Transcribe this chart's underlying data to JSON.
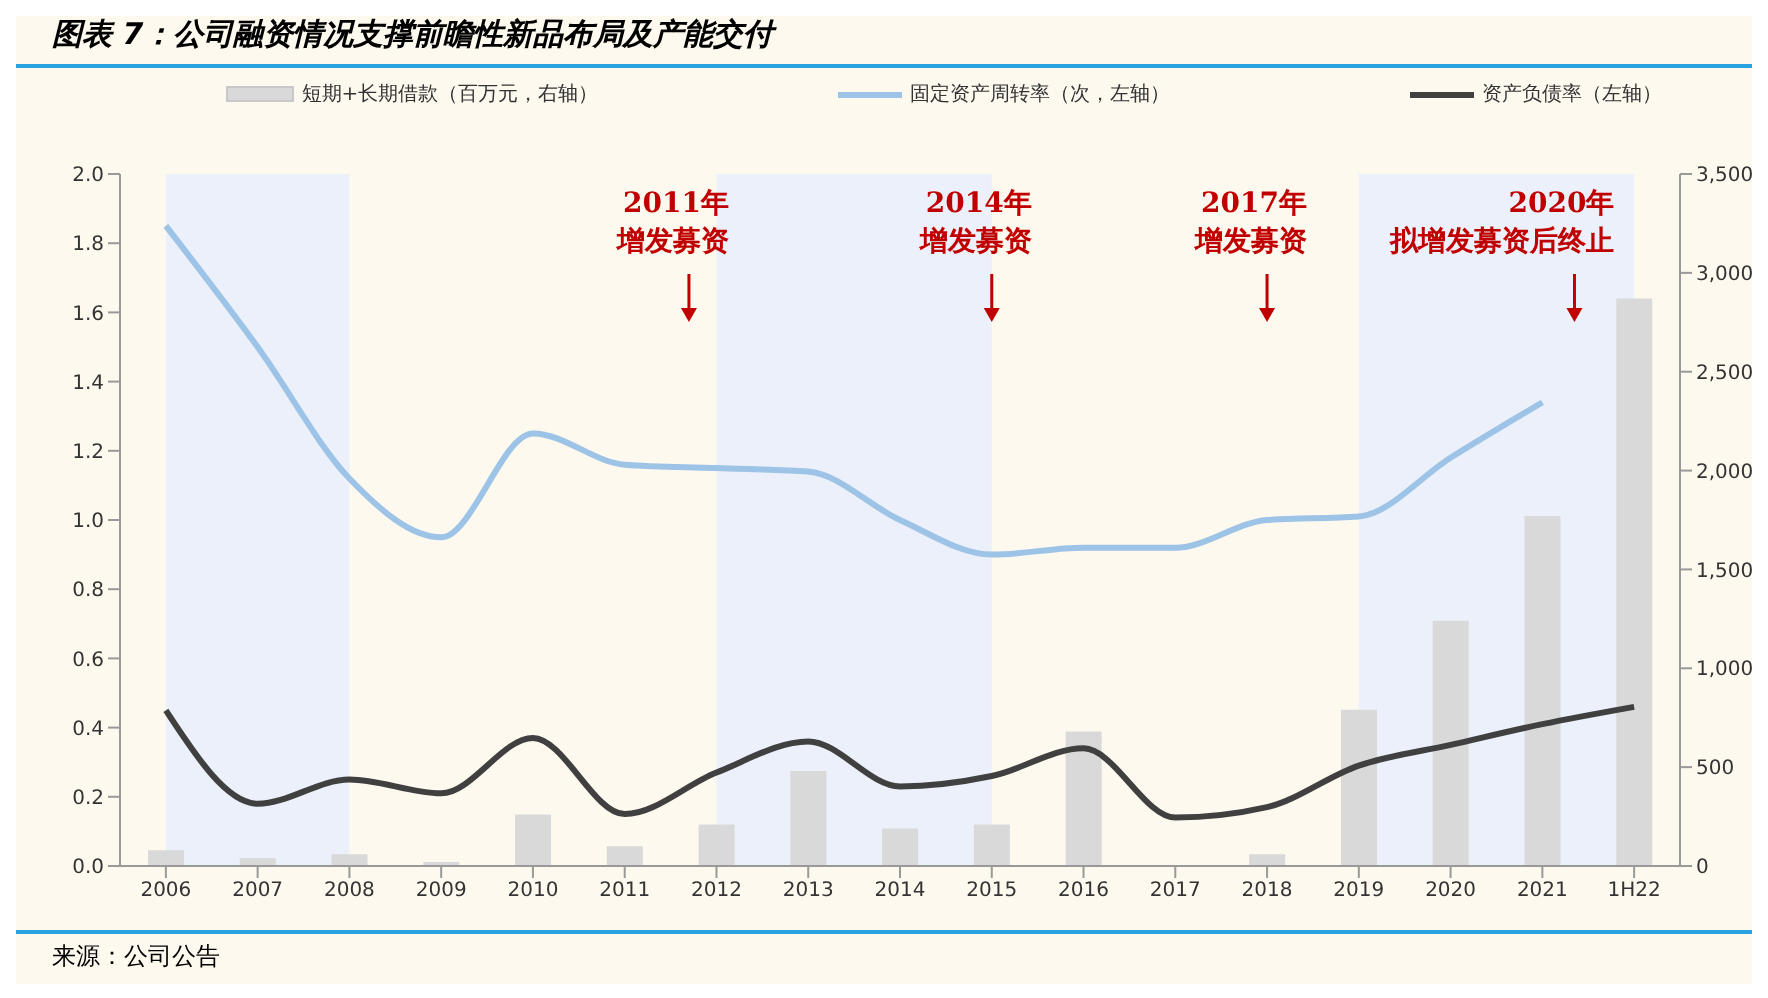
{
  "chart_data": {
    "type": "line",
    "title": "图表 7：公司融资情况支撑前瞻性新品布局及产能交付",
    "categories": [
      "2006",
      "2007",
      "2008",
      "2009",
      "2010",
      "2011",
      "2012",
      "2013",
      "2014",
      "2015",
      "2016",
      "2017",
      "2018",
      "2019",
      "2020",
      "2021",
      "1H22"
    ],
    "series": [
      {
        "name": "短期+长期借款（百万元，右轴）",
        "type": "bar",
        "axis": "y2",
        "color": "#d9d9d9",
        "values": [
          80,
          40,
          60,
          20,
          260,
          100,
          210,
          480,
          190,
          210,
          680,
          null,
          60,
          790,
          1240,
          1770,
          2870
        ]
      },
      {
        "name": "固定资产周转率（次，左轴）",
        "color": "#9dc3e6",
        "values": [
          1.85,
          1.5,
          1.12,
          0.95,
          1.25,
          1.16,
          1.15,
          1.14,
          1.0,
          0.9,
          0.92,
          0.92,
          1.0,
          1.01,
          1.18,
          1.34,
          null
        ]
      },
      {
        "name": "资产负债率（左轴）",
        "color": "#404040",
        "values": [
          0.45,
          0.18,
          0.25,
          0.21,
          0.37,
          0.15,
          0.27,
          0.36,
          0.23,
          0.26,
          0.34,
          0.14,
          0.17,
          0.29,
          0.35,
          0.41,
          0.46
        ]
      }
    ],
    "ylim": [
      0,
      2
    ],
    "yticks": [
      {
        "value": 0,
        "label": "0.0"
      },
      {
        "value": 0.2,
        "label": "0.2"
      },
      {
        "value": 0.4,
        "label": "0.4"
      },
      {
        "value": 0.6,
        "label": "0.6"
      },
      {
        "value": 0.8,
        "label": "0.8"
      },
      {
        "value": 1,
        "label": "1.0"
      },
      {
        "value": 1.2,
        "label": "1.2"
      },
      {
        "value": 1.4,
        "label": "1.4"
      },
      {
        "value": 1.6,
        "label": "1.6"
      },
      {
        "value": 1.8,
        "label": "1.8"
      },
      {
        "value": 2,
        "label": "2.0"
      }
    ],
    "y2lim": [
      0,
      3500
    ],
    "y2ticks": [
      0,
      500,
      {
        "value": 1000,
        "label": "1,000"
      },
      {
        "value": 1500,
        "label": "1,500"
      },
      {
        "value": 2000,
        "label": "2,000"
      },
      {
        "value": 2500,
        "label": "2,500"
      },
      {
        "value": 3000,
        "label": "3,000"
      },
      {
        "value": 3500,
        "label": "3,500"
      }
    ],
    "bands": [
      {
        "axis": "x",
        "from": "2006",
        "to": "2008",
        "color": "#ebf0fa"
      },
      {
        "axis": "x",
        "from": "2012",
        "to": "2015",
        "color": "#ebf0fa"
      },
      {
        "axis": "x",
        "from": "2019",
        "to": "1H22",
        "color": "#ebf0fa"
      }
    ],
    "annotations": [
      "2011年",
      "增发募资",
      "2014年",
      "增发募资",
      "2017年",
      "增发募资",
      "2020年",
      "拟增发募资后终止",
      "来源：公司公告"
    ],
    "legend": "top",
    "marker": "none"
  }
}
